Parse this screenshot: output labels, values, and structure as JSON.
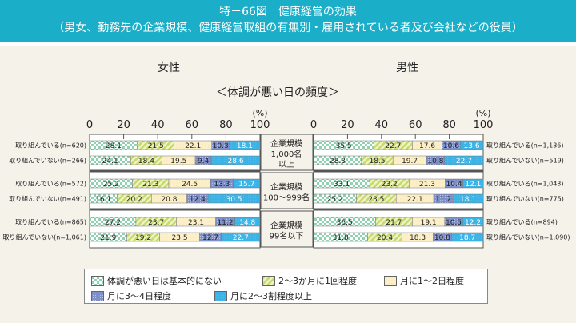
{
  "header": {
    "title": "特－66図　健康経営の効果",
    "subtitle": "（男女、勤務先の企業規模、健康経営取組の有無別・雇用されている者及び会社などの役員）"
  },
  "chart_data": {
    "type": "bar",
    "stacked": true,
    "orientation": "horizontal",
    "subtitle": "＜体調が悪い日の頻度＞",
    "unit": "(%)",
    "xlim": [
      0,
      100
    ],
    "ticks": [
      "0",
      "20",
      "40",
      "60",
      "80",
      "100"
    ],
    "series_names": [
      "体調が悪い日は基本的にない",
      "2～3か月に1回程度",
      "月に1～2日程度",
      "月に3～4日程度",
      "月に2～3割程度以上"
    ],
    "colors": [
      "#8fd1b0",
      "#c8d96a",
      "#fdf0c8",
      "#7f8fc8",
      "#3bb3e6"
    ],
    "groups": [
      "企業規模\n1,000名\n以上",
      "企業規模\n100～999名",
      "企業規模\n99名以下"
    ],
    "panels": [
      {
        "title": "女性",
        "rows": [
          {
            "label": "取り組んでいる(n=620)",
            "values": [
              28.1,
              21.5,
              22.1,
              10.3,
              18.1
            ]
          },
          {
            "label": "取り組んでいない(n=266)",
            "values": [
              24.1,
              18.4,
              19.5,
              9.4,
              28.6
            ]
          },
          {
            "label": "取り組んでいる(n=572)",
            "values": [
              25.2,
              21.3,
              24.5,
              13.3,
              15.7
            ]
          },
          {
            "label": "取り組んでいない(n=491)",
            "values": [
              16.1,
              20.2,
              20.8,
              12.4,
              30.5
            ]
          },
          {
            "label": "取り組んでいる(n=865)",
            "values": [
              27.2,
              23.7,
              23.1,
              11.2,
              14.8
            ]
          },
          {
            "label": "取り組んでいない(n=1,061)",
            "values": [
              21.9,
              19.2,
              23.5,
              12.7,
              22.7
            ]
          }
        ]
      },
      {
        "title": "男性",
        "rows": [
          {
            "label": "取り組んでいる(n=1,136)",
            "values": [
              35.5,
              22.7,
              17.6,
              10.6,
              13.6
            ]
          },
          {
            "label": "取り組んでいない(n=519)",
            "values": [
              28.3,
              18.5,
              19.7,
              10.8,
              22.7
            ]
          },
          {
            "label": "取り組んでいる(n=1,043)",
            "values": [
              33.1,
              23.2,
              21.3,
              10.4,
              12.1
            ]
          },
          {
            "label": "取り組んでいない(n=775)",
            "values": [
              25.2,
              23.5,
              22.1,
              11.2,
              18.1
            ]
          },
          {
            "label": "取り組んでいる(n=894)",
            "values": [
              36.5,
              21.7,
              19.1,
              10.5,
              12.2
            ]
          },
          {
            "label": "取り組んでいない(n=1,090)",
            "values": [
              31.8,
              20.4,
              18.3,
              10.8,
              18.7
            ]
          }
        ]
      }
    ],
    "legend_position": "bottom"
  }
}
